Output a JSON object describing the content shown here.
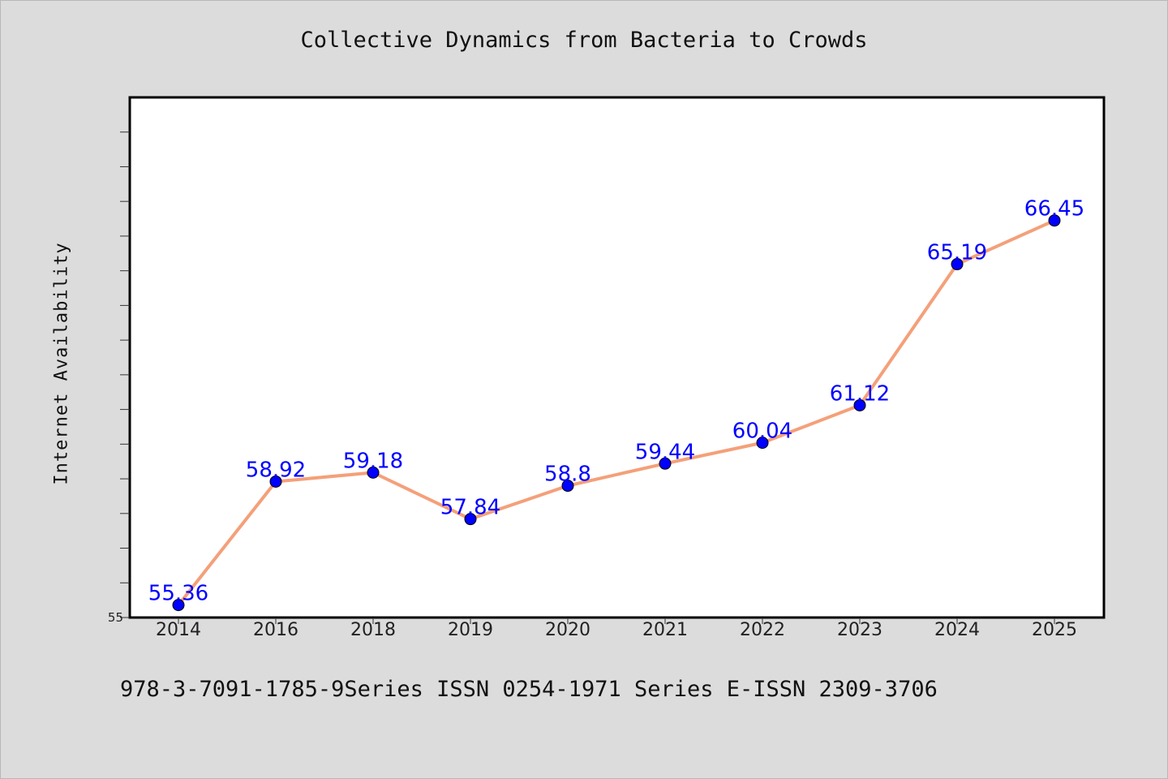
{
  "chart_data": {
    "type": "line",
    "title": "Collective Dynamics from Bacteria to Crowds",
    "xlabel": "",
    "ylabel": "Internet Availability",
    "categories": [
      "2014",
      "2016",
      "2018",
      "2019",
      "2020",
      "2021",
      "2022",
      "2023",
      "2024",
      "2025"
    ],
    "series": [
      {
        "values": [
          55.36,
          58.92,
          59.18,
          57.84,
          58.8,
          59.44,
          60.04,
          61.12,
          65.19,
          66.45
        ],
        "labels": [
          "55.36",
          "58.92",
          "59.18",
          "57.84",
          "58.8",
          "59.44",
          "60.04",
          "61.12",
          "65.19",
          "66.45"
        ],
        "line_color": "#f4a07a",
        "marker_color": "#0000ff"
      }
    ],
    "ylim": [
      55,
      70
    ],
    "y_tick_labels": [
      "55"
    ],
    "grid": false,
    "legend": "none"
  },
  "footer": "978-3-7091-1785-9Series ISSN 0254-1971 Series E-ISSN 2309-3706"
}
